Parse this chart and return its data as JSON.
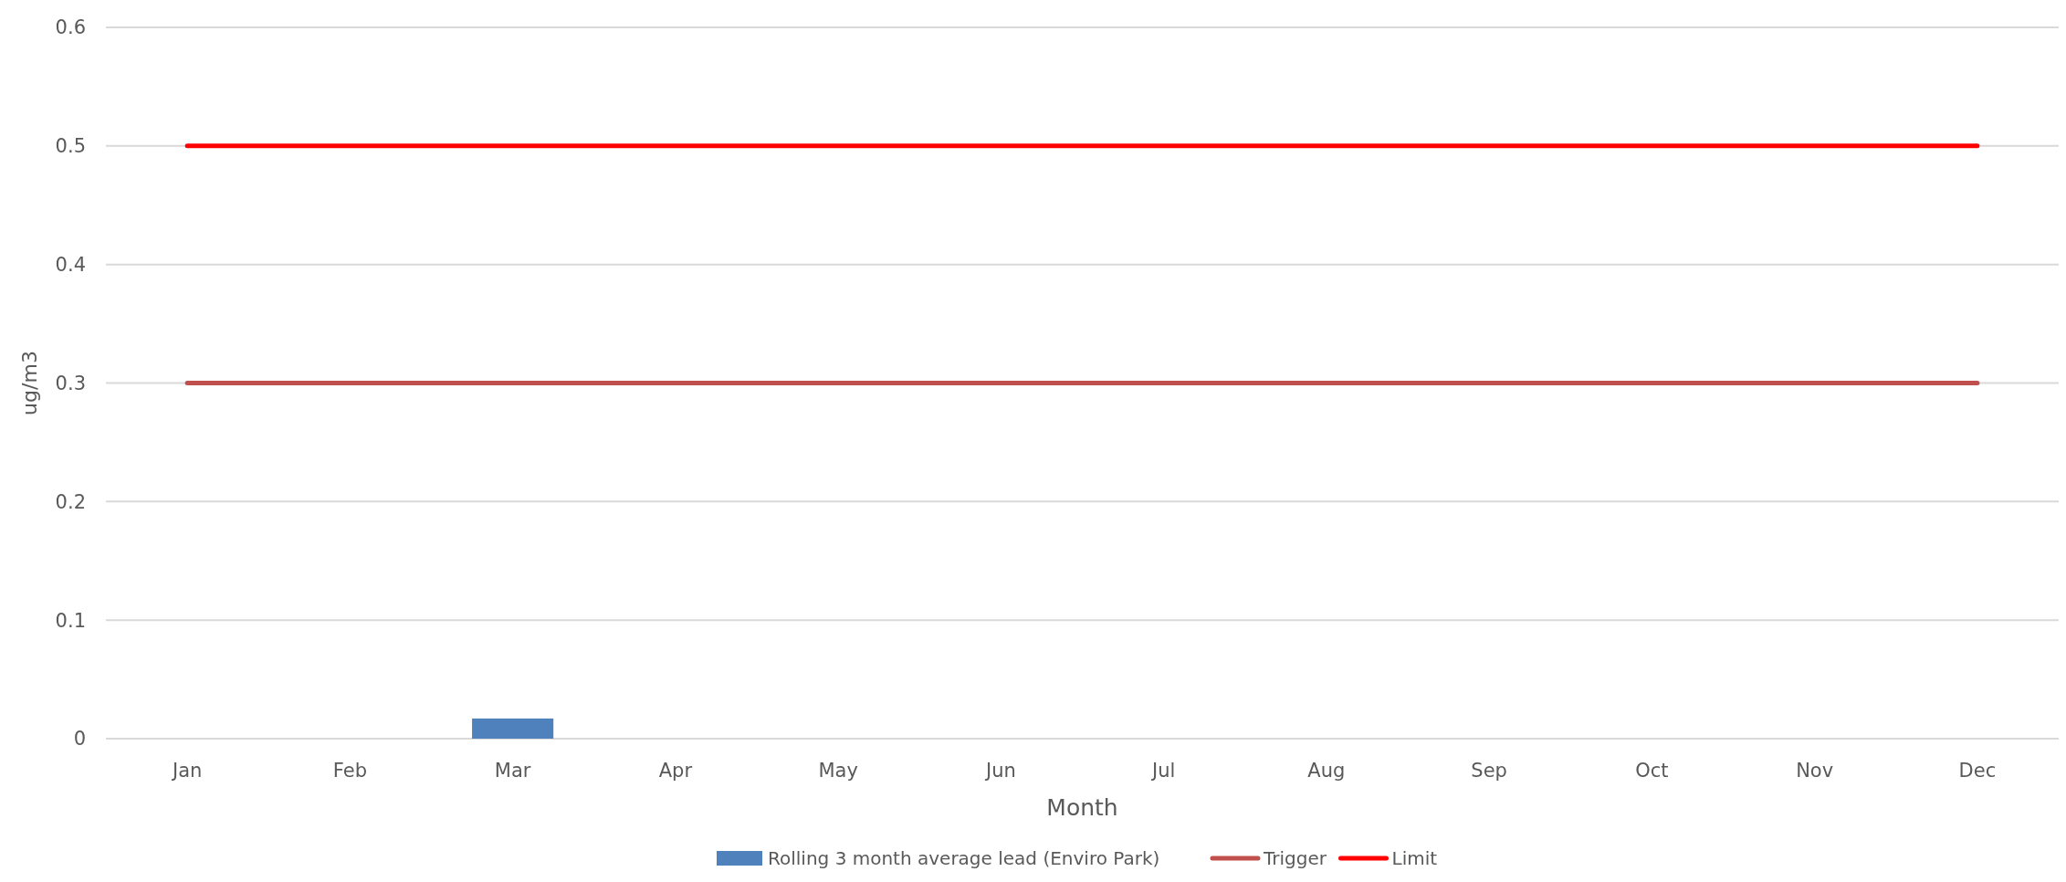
{
  "chart_data": {
    "type": "bar",
    "xlabel": "Month",
    "ylabel": "ug/m3",
    "categories": [
      "Jan",
      "Feb",
      "Mar",
      "Apr",
      "May",
      "Jun",
      "Jul",
      "Aug",
      "Sep",
      "Oct",
      "Nov",
      "Dec"
    ],
    "series": [
      {
        "name": "Rolling 3 month average lead (Enviro Park)",
        "color": "#4f81bd",
        "values": [
          null,
          null,
          0.017,
          null,
          null,
          null,
          null,
          null,
          null,
          null,
          null,
          null
        ]
      },
      {
        "name": "Trigger",
        "type": "line",
        "color": "#c0504d",
        "values": [
          0.3,
          0.3,
          0.3,
          0.3,
          0.3,
          0.3,
          0.3,
          0.3,
          0.3,
          0.3,
          0.3,
          0.3
        ]
      },
      {
        "name": "Limit",
        "type": "line",
        "color": "#ff0000",
        "values": [
          0.5,
          0.5,
          0.5,
          0.5,
          0.5,
          0.5,
          0.5,
          0.5,
          0.5,
          0.5,
          0.5,
          0.5
        ]
      }
    ],
    "ylim": [
      0,
      0.6
    ],
    "yticks": [
      0,
      0.1,
      0.2,
      0.3,
      0.4,
      0.5,
      0.6
    ],
    "grid": "y",
    "legend": "bottom",
    "marker": "none",
    "line_style": "solid"
  }
}
